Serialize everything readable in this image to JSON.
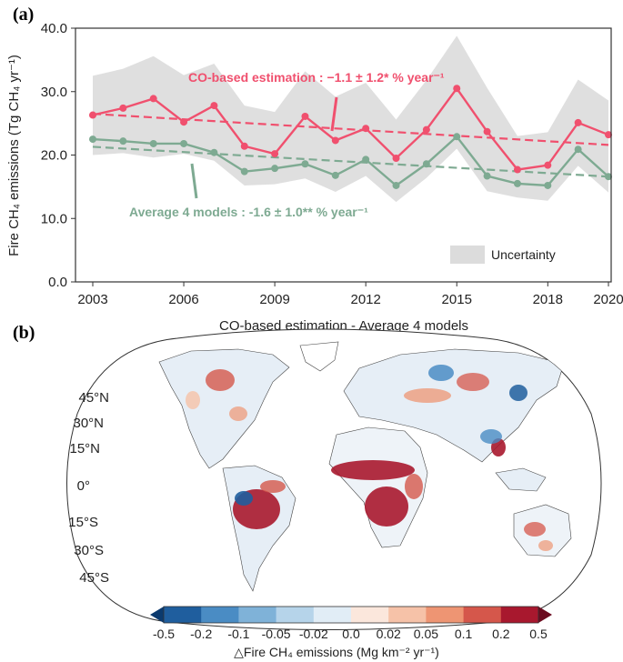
{
  "panel_a": {
    "label": "(a)",
    "ylabel": "Fire CH₄ emissions (Tg CH₄ yr⁻¹)",
    "uncertainty_label": "Uncertainty",
    "chart_data": {
      "type": "line",
      "x": [
        2003,
        2004,
        2005,
        2006,
        2007,
        2008,
        2009,
        2010,
        2011,
        2012,
        2013,
        2014,
        2015,
        2016,
        2017,
        2018,
        2019,
        2020
      ],
      "xticks": [
        "2003",
        "2006",
        "2009",
        "2012",
        "2015",
        "2018",
        "2020"
      ],
      "yticks": [
        "0.0",
        "10.0",
        "20.0",
        "30.0",
        "40.0"
      ],
      "ylim": [
        0,
        40
      ],
      "series": [
        {
          "name": "CO-based estimation",
          "color": "#f0506e",
          "values": [
            26.3,
            27.4,
            28.9,
            25.2,
            27.8,
            21.4,
            20.2,
            26.1,
            22.3,
            24.2,
            19.5,
            24.0,
            30.5,
            23.7,
            17.7,
            18.4,
            25.1,
            23.2
          ],
          "trend": [
            26.5,
            21.6
          ],
          "annotation": "CO-based estimation : −1.1 ± 1.2* % year⁻¹"
        },
        {
          "name": "Average 4 models",
          "color": "#7eaa92",
          "values": [
            22.5,
            22.2,
            21.8,
            21.8,
            20.4,
            17.4,
            17.9,
            18.6,
            16.8,
            19.3,
            15.2,
            18.6,
            22.9,
            16.7,
            15.5,
            15.2,
            20.9,
            16.6
          ],
          "trend": [
            21.3,
            16.6
          ],
          "annotation": "Average 4 models : -1.6 ± 1.0** % year⁻¹"
        }
      ],
      "uncertainty": {
        "upper": [
          32.5,
          33.6,
          35.6,
          32.6,
          34.4,
          27.8,
          26.8,
          33.2,
          29.2,
          31.4,
          25.6,
          31.8,
          38.8,
          30.6,
          23.0,
          23.6,
          31.9,
          28.6
        ],
        "lower": [
          20.0,
          20.3,
          19.6,
          20.2,
          19.1,
          15.2,
          15.4,
          16.3,
          14.2,
          16.7,
          12.6,
          16.4,
          21.0,
          14.3,
          13.3,
          12.8,
          18.3,
          14.1
        ]
      }
    }
  },
  "panel_b": {
    "label": "(b)",
    "title": "CO-based estimation  - Average 4 models",
    "lat_labels": [
      "45°N",
      "30°N",
      "15°N",
      "0°",
      "15°S",
      "30°S",
      "45°S"
    ],
    "colorbar": {
      "ticks": [
        "-0.5",
        "-0.2",
        "-0.1",
        "-0.05",
        "-0.02",
        "0.0",
        "0.02",
        "0.05",
        "0.1",
        "0.2",
        "0.5"
      ],
      "colors": [
        "#1f5e9e",
        "#4a8cc4",
        "#7fb2d8",
        "#b6d4ea",
        "#e1edf6",
        "#fbe7dc",
        "#f6c2a8",
        "#ee9573",
        "#d5574b",
        "#a8182e"
      ],
      "label": "△Fire CH₄ emissions (Mg km⁻² yr⁻¹)"
    }
  }
}
